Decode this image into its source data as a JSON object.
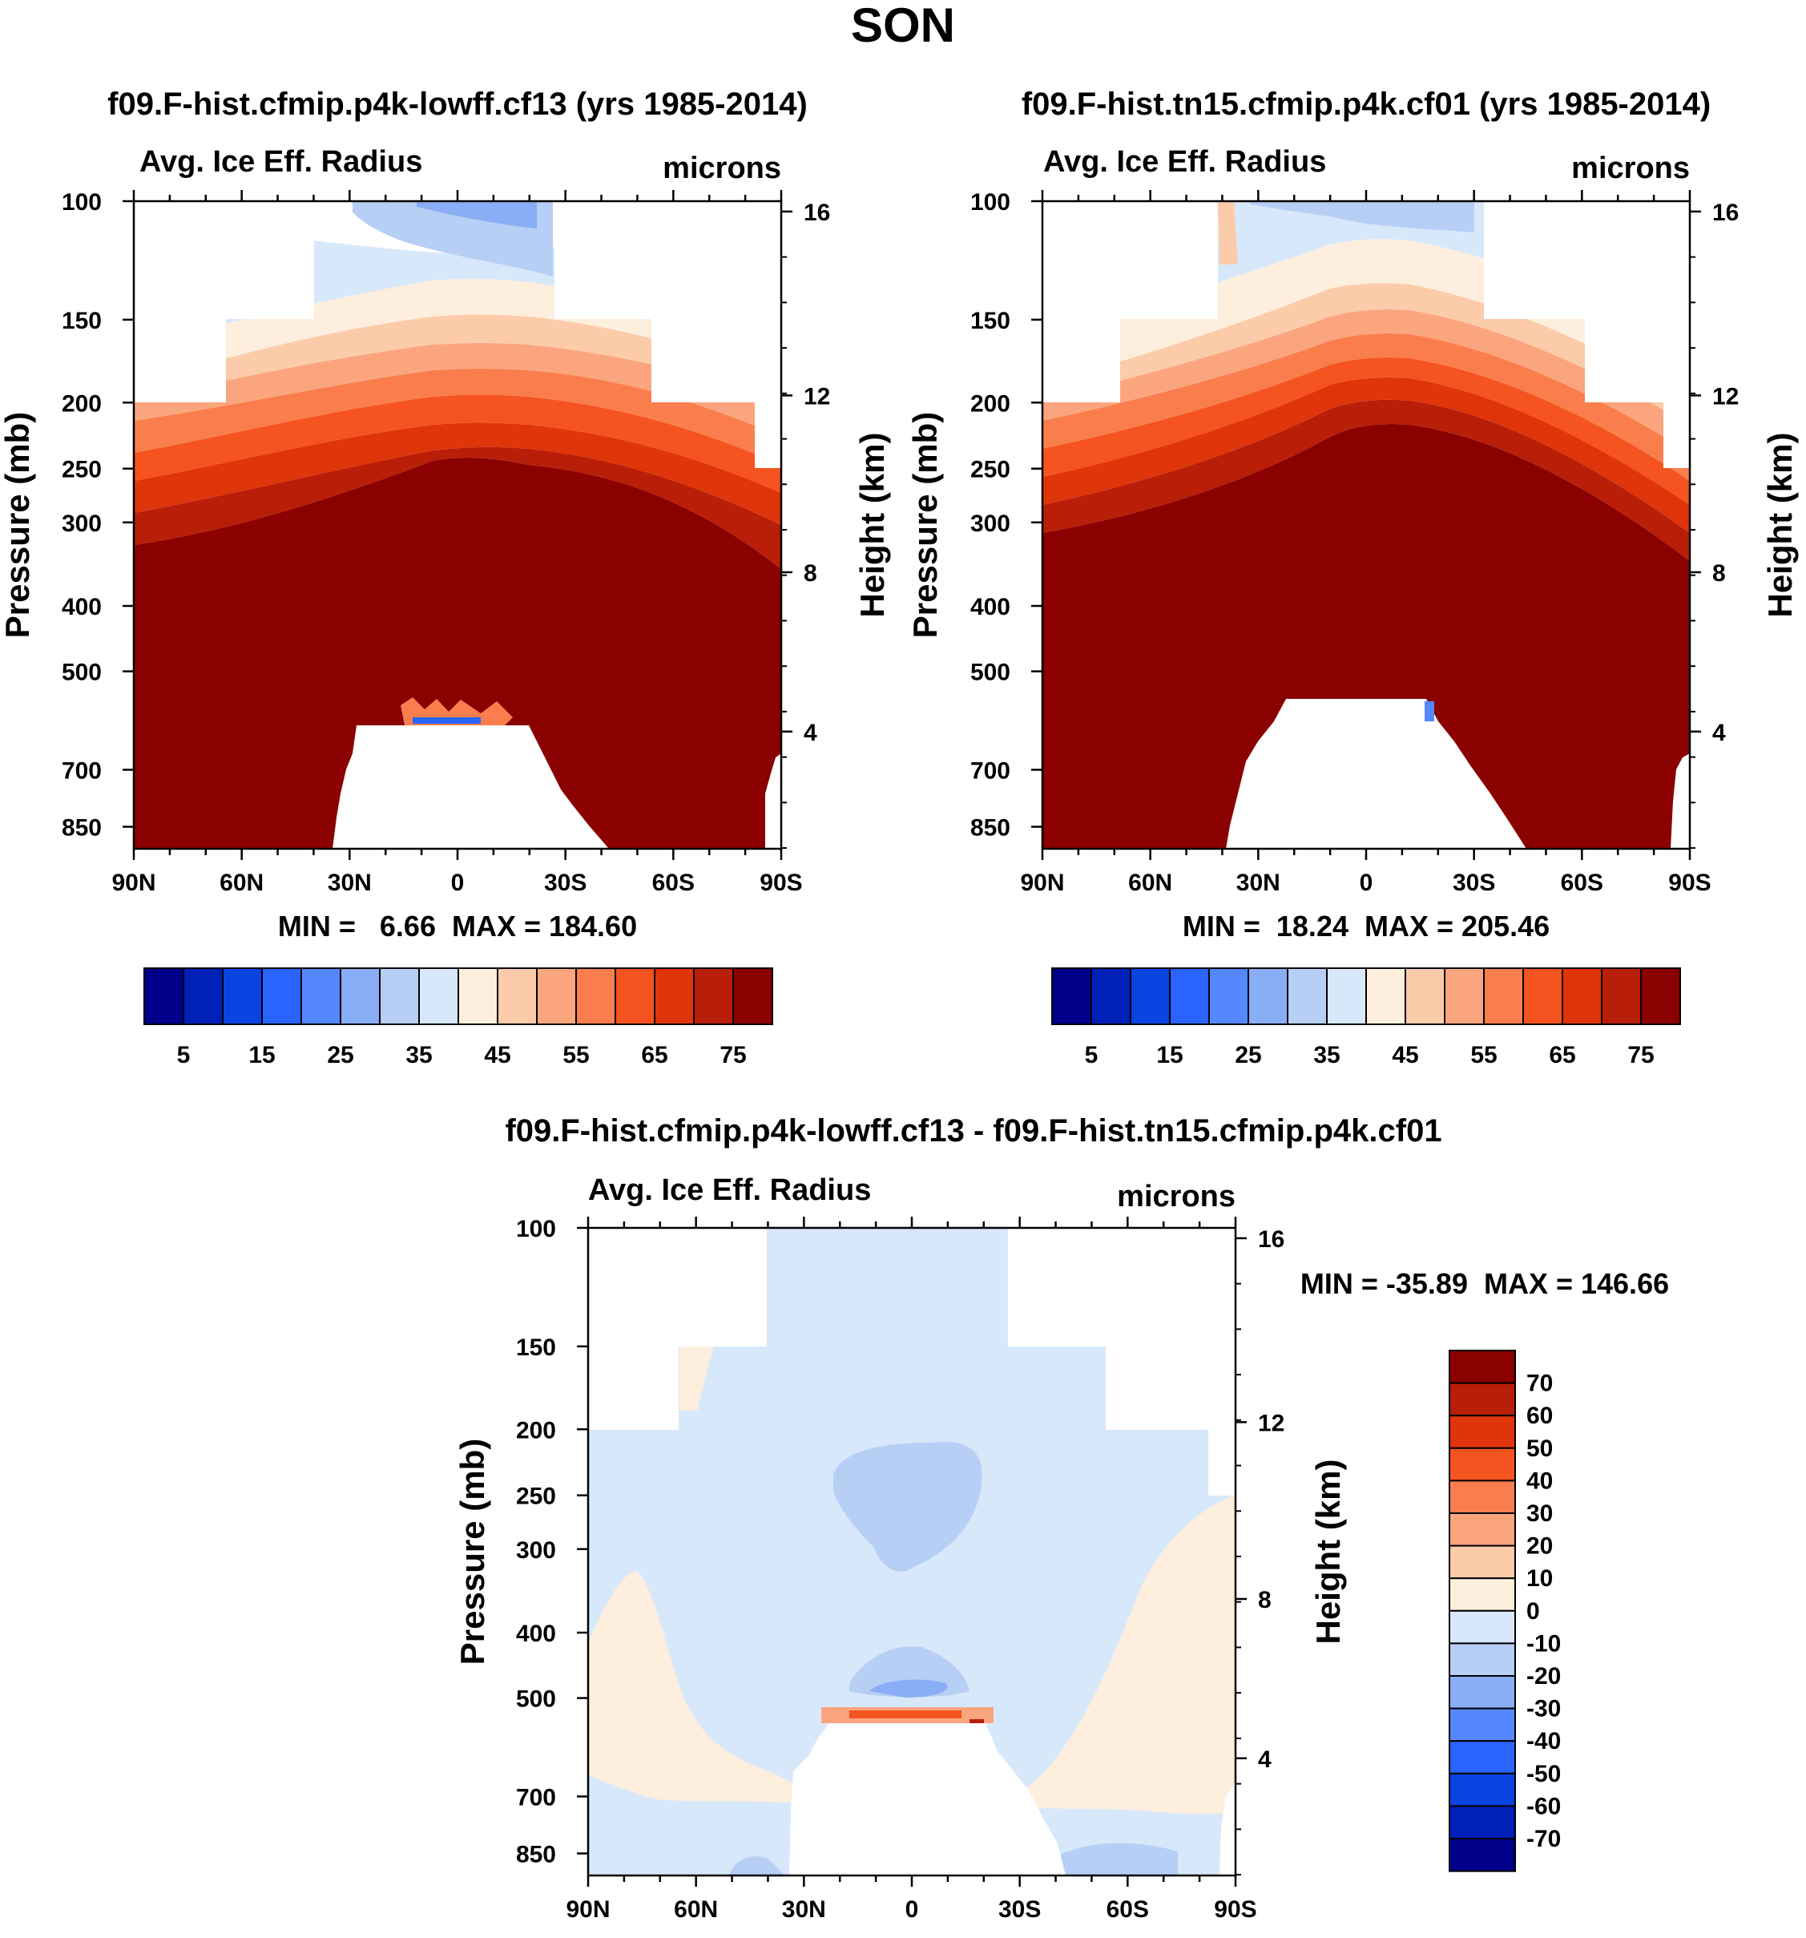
{
  "figure": {
    "title": "SON",
    "panel_a": {
      "title": "f09.F-hist.cfmip.p4k-lowff.cf13 (yrs 1985-2014)",
      "variable": "Avg. Ice Eff. Radius",
      "units": "microns",
      "ylabel": "Pressure (mb)",
      "y2label": "Height (km)",
      "stats": "MIN =   6.66  MAX = 184.60"
    },
    "panel_b": {
      "title": "f09.F-hist.tn15.cfmip.p4k.cf01 (yrs 1985-2014)",
      "variable": "Avg. Ice Eff. Radius",
      "units": "microns",
      "ylabel": "Pressure (mb)",
      "y2label": "Height (km)",
      "stats": "MIN =  18.24  MAX = 205.46"
    },
    "panel_c": {
      "title": "f09.F-hist.cfmip.p4k-lowff.cf13 - f09.F-hist.tn15.cfmip.p4k.cf01",
      "variable": "Avg. Ice Eff. Radius",
      "units": "microns",
      "ylabel": "Pressure (mb)",
      "y2label": "Height (km)",
      "stats": "MIN = -35.89  MAX = 146.66"
    }
  },
  "chart_data": [
    {
      "type": "heatmap",
      "panel": "panel_a",
      "x_ticks": [
        "90N",
        "60N",
        "30N",
        "0",
        "30S",
        "60S",
        "90S"
      ],
      "y_ticks": [
        "100",
        "150",
        "200",
        "250",
        "300",
        "400",
        "500",
        "700",
        "850"
      ],
      "y2_ticks": [
        "16",
        "12",
        "8",
        "4"
      ],
      "levels": [
        0,
        5,
        10,
        15,
        20,
        25,
        30,
        35,
        40,
        45,
        50,
        55,
        60,
        65,
        70,
        75,
        80
      ],
      "colorbar_labels": [
        "5",
        "15",
        "25",
        "35",
        "45",
        "55",
        "65",
        "75"
      ],
      "colors": [
        "#00008b",
        "#0020b8",
        "#0a44e0",
        "#2a64ff",
        "#5588ff",
        "#8aaef5",
        "#b7cef5",
        "#d8e8fb",
        "#fdeedd",
        "#fccbaa",
        "#fba57f",
        "#fa7e4d",
        "#f5531f",
        "#e0340b",
        "#b81e08",
        "#8b0000"
      ],
      "min": 6.66,
      "max": 184.6
    },
    {
      "type": "heatmap",
      "panel": "panel_b",
      "x_ticks": [
        "90N",
        "60N",
        "30N",
        "0",
        "30S",
        "60S",
        "90S"
      ],
      "y_ticks": [
        "100",
        "150",
        "200",
        "250",
        "300",
        "400",
        "500",
        "700",
        "850"
      ],
      "y2_ticks": [
        "16",
        "12",
        "8",
        "4"
      ],
      "levels": [
        0,
        5,
        10,
        15,
        20,
        25,
        30,
        35,
        40,
        45,
        50,
        55,
        60,
        65,
        70,
        75,
        80
      ],
      "colorbar_labels": [
        "5",
        "15",
        "25",
        "35",
        "45",
        "55",
        "65",
        "75"
      ],
      "colors": [
        "#00008b",
        "#0020b8",
        "#0a44e0",
        "#2a64ff",
        "#5588ff",
        "#8aaef5",
        "#b7cef5",
        "#d8e8fb",
        "#fdeedd",
        "#fccbaa",
        "#fba57f",
        "#fa7e4d",
        "#f5531f",
        "#e0340b",
        "#b81e08",
        "#8b0000"
      ],
      "min": 18.24,
      "max": 205.46
    },
    {
      "type": "heatmap",
      "panel": "panel_c",
      "x_ticks": [
        "90N",
        "60N",
        "30N",
        "0",
        "30S",
        "60S",
        "90S"
      ],
      "y_ticks": [
        "100",
        "150",
        "200",
        "250",
        "300",
        "400",
        "500",
        "700",
        "850"
      ],
      "y2_ticks": [
        "16",
        "12",
        "8",
        "4"
      ],
      "levels": [
        -80,
        -70,
        -60,
        -50,
        -40,
        -30,
        -20,
        -10,
        0,
        10,
        20,
        30,
        40,
        50,
        60,
        70,
        80
      ],
      "colorbar_labels": [
        "70",
        "60",
        "50",
        "40",
        "30",
        "20",
        "10",
        "0",
        "-10",
        "-20",
        "-30",
        "-40",
        "-50",
        "-60",
        "-70"
      ],
      "colors": [
        "#8b0000",
        "#b81e08",
        "#e0340b",
        "#f5531f",
        "#fa7e4d",
        "#fba57f",
        "#fccbaa",
        "#fdeedd",
        "#d8e8fb",
        "#b7cef5",
        "#8aaef5",
        "#5588ff",
        "#2a64ff",
        "#0a44e0",
        "#0020b8",
        "#00008b"
      ],
      "min": -35.89,
      "max": 146.66
    }
  ]
}
